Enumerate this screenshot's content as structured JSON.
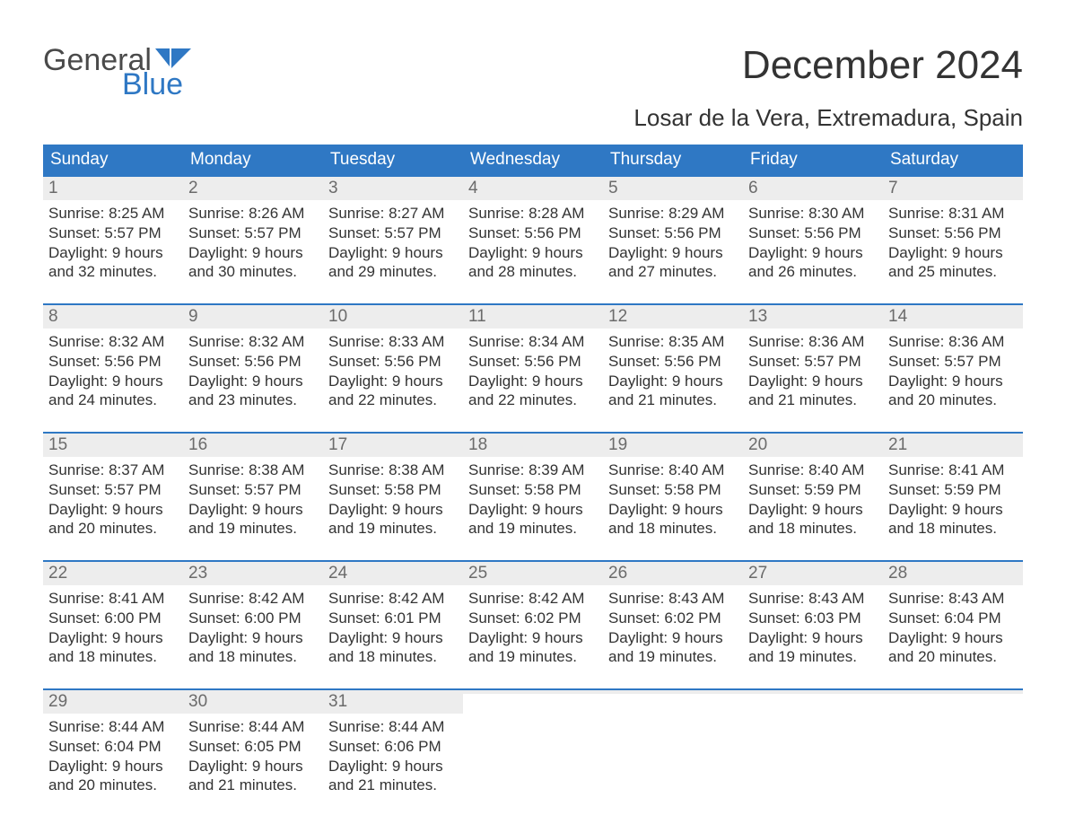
{
  "brand": {
    "word1": "General",
    "word2": "Blue"
  },
  "colors": {
    "brand_blue": "#2f78c4",
    "brand_gray": "#4a4a4a",
    "header_bg": "#2f78c4",
    "header_text": "#ffffff",
    "daynum_bg": "#ededed",
    "daynum_text": "#6b6b6b",
    "body_text": "#333333",
    "page_bg": "#ffffff"
  },
  "typography": {
    "month_title_fontsize": 44,
    "location_fontsize": 26,
    "weekday_fontsize": 19,
    "daynum_fontsize": 19,
    "body_fontsize": 17
  },
  "header": {
    "month_title": "December 2024",
    "location": "Losar de la Vera, Extremadura, Spain"
  },
  "weekdays": [
    "Sunday",
    "Monday",
    "Tuesday",
    "Wednesday",
    "Thursday",
    "Friday",
    "Saturday"
  ],
  "weeks": [
    [
      {
        "date": "1",
        "sunrise": "Sunrise: 8:25 AM",
        "sunset": "Sunset: 5:57 PM",
        "daylight1": "Daylight: 9 hours",
        "daylight2": "and 32 minutes."
      },
      {
        "date": "2",
        "sunrise": "Sunrise: 8:26 AM",
        "sunset": "Sunset: 5:57 PM",
        "daylight1": "Daylight: 9 hours",
        "daylight2": "and 30 minutes."
      },
      {
        "date": "3",
        "sunrise": "Sunrise: 8:27 AM",
        "sunset": "Sunset: 5:57 PM",
        "daylight1": "Daylight: 9 hours",
        "daylight2": "and 29 minutes."
      },
      {
        "date": "4",
        "sunrise": "Sunrise: 8:28 AM",
        "sunset": "Sunset: 5:56 PM",
        "daylight1": "Daylight: 9 hours",
        "daylight2": "and 28 minutes."
      },
      {
        "date": "5",
        "sunrise": "Sunrise: 8:29 AM",
        "sunset": "Sunset: 5:56 PM",
        "daylight1": "Daylight: 9 hours",
        "daylight2": "and 27 minutes."
      },
      {
        "date": "6",
        "sunrise": "Sunrise: 8:30 AM",
        "sunset": "Sunset: 5:56 PM",
        "daylight1": "Daylight: 9 hours",
        "daylight2": "and 26 minutes."
      },
      {
        "date": "7",
        "sunrise": "Sunrise: 8:31 AM",
        "sunset": "Sunset: 5:56 PM",
        "daylight1": "Daylight: 9 hours",
        "daylight2": "and 25 minutes."
      }
    ],
    [
      {
        "date": "8",
        "sunrise": "Sunrise: 8:32 AM",
        "sunset": "Sunset: 5:56 PM",
        "daylight1": "Daylight: 9 hours",
        "daylight2": "and 24 minutes."
      },
      {
        "date": "9",
        "sunrise": "Sunrise: 8:32 AM",
        "sunset": "Sunset: 5:56 PM",
        "daylight1": "Daylight: 9 hours",
        "daylight2": "and 23 minutes."
      },
      {
        "date": "10",
        "sunrise": "Sunrise: 8:33 AM",
        "sunset": "Sunset: 5:56 PM",
        "daylight1": "Daylight: 9 hours",
        "daylight2": "and 22 minutes."
      },
      {
        "date": "11",
        "sunrise": "Sunrise: 8:34 AM",
        "sunset": "Sunset: 5:56 PM",
        "daylight1": "Daylight: 9 hours",
        "daylight2": "and 22 minutes."
      },
      {
        "date": "12",
        "sunrise": "Sunrise: 8:35 AM",
        "sunset": "Sunset: 5:56 PM",
        "daylight1": "Daylight: 9 hours",
        "daylight2": "and 21 minutes."
      },
      {
        "date": "13",
        "sunrise": "Sunrise: 8:36 AM",
        "sunset": "Sunset: 5:57 PM",
        "daylight1": "Daylight: 9 hours",
        "daylight2": "and 21 minutes."
      },
      {
        "date": "14",
        "sunrise": "Sunrise: 8:36 AM",
        "sunset": "Sunset: 5:57 PM",
        "daylight1": "Daylight: 9 hours",
        "daylight2": "and 20 minutes."
      }
    ],
    [
      {
        "date": "15",
        "sunrise": "Sunrise: 8:37 AM",
        "sunset": "Sunset: 5:57 PM",
        "daylight1": "Daylight: 9 hours",
        "daylight2": "and 20 minutes."
      },
      {
        "date": "16",
        "sunrise": "Sunrise: 8:38 AM",
        "sunset": "Sunset: 5:57 PM",
        "daylight1": "Daylight: 9 hours",
        "daylight2": "and 19 minutes."
      },
      {
        "date": "17",
        "sunrise": "Sunrise: 8:38 AM",
        "sunset": "Sunset: 5:58 PM",
        "daylight1": "Daylight: 9 hours",
        "daylight2": "and 19 minutes."
      },
      {
        "date": "18",
        "sunrise": "Sunrise: 8:39 AM",
        "sunset": "Sunset: 5:58 PM",
        "daylight1": "Daylight: 9 hours",
        "daylight2": "and 19 minutes."
      },
      {
        "date": "19",
        "sunrise": "Sunrise: 8:40 AM",
        "sunset": "Sunset: 5:58 PM",
        "daylight1": "Daylight: 9 hours",
        "daylight2": "and 18 minutes."
      },
      {
        "date": "20",
        "sunrise": "Sunrise: 8:40 AM",
        "sunset": "Sunset: 5:59 PM",
        "daylight1": "Daylight: 9 hours",
        "daylight2": "and 18 minutes."
      },
      {
        "date": "21",
        "sunrise": "Sunrise: 8:41 AM",
        "sunset": "Sunset: 5:59 PM",
        "daylight1": "Daylight: 9 hours",
        "daylight2": "and 18 minutes."
      }
    ],
    [
      {
        "date": "22",
        "sunrise": "Sunrise: 8:41 AM",
        "sunset": "Sunset: 6:00 PM",
        "daylight1": "Daylight: 9 hours",
        "daylight2": "and 18 minutes."
      },
      {
        "date": "23",
        "sunrise": "Sunrise: 8:42 AM",
        "sunset": "Sunset: 6:00 PM",
        "daylight1": "Daylight: 9 hours",
        "daylight2": "and 18 minutes."
      },
      {
        "date": "24",
        "sunrise": "Sunrise: 8:42 AM",
        "sunset": "Sunset: 6:01 PM",
        "daylight1": "Daylight: 9 hours",
        "daylight2": "and 18 minutes."
      },
      {
        "date": "25",
        "sunrise": "Sunrise: 8:42 AM",
        "sunset": "Sunset: 6:02 PM",
        "daylight1": "Daylight: 9 hours",
        "daylight2": "and 19 minutes."
      },
      {
        "date": "26",
        "sunrise": "Sunrise: 8:43 AM",
        "sunset": "Sunset: 6:02 PM",
        "daylight1": "Daylight: 9 hours",
        "daylight2": "and 19 minutes."
      },
      {
        "date": "27",
        "sunrise": "Sunrise: 8:43 AM",
        "sunset": "Sunset: 6:03 PM",
        "daylight1": "Daylight: 9 hours",
        "daylight2": "and 19 minutes."
      },
      {
        "date": "28",
        "sunrise": "Sunrise: 8:43 AM",
        "sunset": "Sunset: 6:04 PM",
        "daylight1": "Daylight: 9 hours",
        "daylight2": "and 20 minutes."
      }
    ],
    [
      {
        "date": "29",
        "sunrise": "Sunrise: 8:44 AM",
        "sunset": "Sunset: 6:04 PM",
        "daylight1": "Daylight: 9 hours",
        "daylight2": "and 20 minutes."
      },
      {
        "date": "30",
        "sunrise": "Sunrise: 8:44 AM",
        "sunset": "Sunset: 6:05 PM",
        "daylight1": "Daylight: 9 hours",
        "daylight2": "and 21 minutes."
      },
      {
        "date": "31",
        "sunrise": "Sunrise: 8:44 AM",
        "sunset": "Sunset: 6:06 PM",
        "daylight1": "Daylight: 9 hours",
        "daylight2": "and 21 minutes."
      },
      {
        "empty": true
      },
      {
        "empty": true
      },
      {
        "empty": true
      },
      {
        "empty": true
      }
    ]
  ]
}
